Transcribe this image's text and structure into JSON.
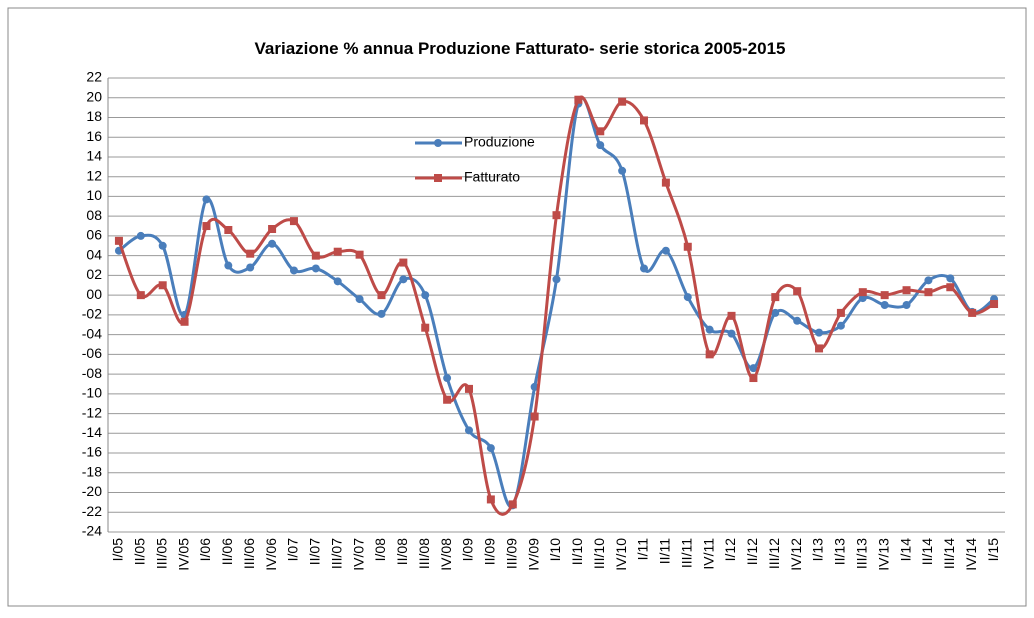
{
  "chart_data": {
    "type": "line",
    "title": "Variazione % annua Produzione Fatturato- serie storica 2005-2015",
    "categories": [
      "I/05",
      "II/05",
      "III/05",
      "IV/05",
      "I/06",
      "II/06",
      "III/06",
      "IV/06",
      "I/07",
      "II/07",
      "III/07",
      "IV/07",
      "I/08",
      "II/08",
      "III/08",
      "IV/08",
      "I/09",
      "II/09",
      "III/09",
      "IV/09",
      "I/10",
      "II/10",
      "III/10",
      "IV/10",
      "I/11",
      "II/11",
      "III/11",
      "IV/11",
      "I/12",
      "II/12",
      "III/12",
      "IV/12",
      "I/13",
      "II/13",
      "III/13",
      "IV/13",
      "I/14",
      "II/14",
      "III/14",
      "IV/14",
      "I/15"
    ],
    "series": [
      {
        "name": "Produzione",
        "color": "#4a7ebb",
        "values": [
          4.5,
          6,
          5,
          -2,
          9.7,
          3,
          2.8,
          5.2,
          2.5,
          2.7,
          1.4,
          -0.4,
          -1.9,
          1.6,
          0,
          -8.4,
          -13.7,
          -15.5,
          -21.3,
          -9.3,
          1.6,
          19.4,
          15.2,
          12.6,
          2.7,
          4.5,
          -0.2,
          -3.5,
          -3.9,
          -7.4,
          -1.8,
          -2.6,
          -3.8,
          -3.1,
          -0.3,
          -1,
          -1,
          1.5,
          1.7,
          -1.7,
          -0.4
        ]
      },
      {
        "name": "Fatturato",
        "color": "#be4b48",
        "values": [
          5.5,
          0,
          1,
          -2.7,
          7,
          6.6,
          4.2,
          6.7,
          7.5,
          4,
          4.4,
          4.1,
          0,
          3.3,
          -3.3,
          -10.6,
          -9.5,
          -20.7,
          -21.2,
          -12.3,
          8.1,
          19.8,
          16.6,
          19.6,
          17.7,
          11.4,
          4.9,
          -6,
          -2.1,
          -8.4,
          -0.2,
          0.4,
          -5.4,
          -1.8,
          0.3,
          0,
          0.5,
          0.3,
          0.8,
          -1.8,
          -0.9
        ]
      }
    ],
    "ylim": [
      -24,
      22
    ],
    "yticks": [
      22,
      20,
      18,
      16,
      14,
      12,
      10,
      {
        "value": 8,
        "label": "08"
      },
      {
        "value": 6,
        "label": "06"
      },
      {
        "value": 4,
        "label": "04"
      },
      {
        "value": 2,
        "label": "02"
      },
      {
        "value": 0,
        "label": "00"
      },
      {
        "value": -2,
        "label": "-02"
      },
      {
        "value": -4,
        "label": "-04"
      },
      {
        "value": -6,
        "label": "-06"
      },
      {
        "value": -8,
        "label": "-08"
      },
      -10,
      -12,
      -14,
      -16,
      -18,
      -20,
      -22,
      -24
    ],
    "grid": true
  }
}
